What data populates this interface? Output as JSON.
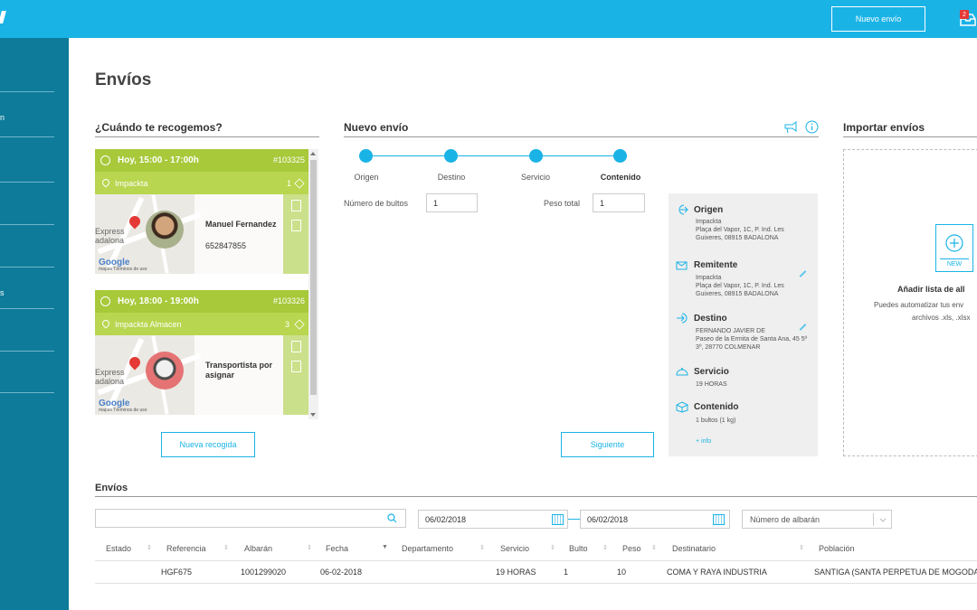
{
  "header": {
    "new_shipment_label": "Nuevo envío",
    "notification_count": "2"
  },
  "sidebar": {
    "items": [
      {
        "label": ""
      },
      {
        "label": "n"
      },
      {
        "label": ""
      },
      {
        "label": ""
      },
      {
        "label": ""
      },
      {
        "label": "s"
      },
      {
        "label": ""
      },
      {
        "label": ""
      }
    ]
  },
  "page_title": "Envíos",
  "pickup": {
    "title": "¿Cuándo te recogemos?",
    "cards": [
      {
        "time": "Hoy, 15:00 - 17:00h",
        "id": "#103325",
        "location": "Impackta",
        "packages": "1",
        "map_city_1": "Express",
        "map_city_2": "adalona",
        "google": "Google",
        "map_footer": "mapas   Términos de uso",
        "driver_name": "Manuel Fernandez",
        "driver_phone": "652847855"
      },
      {
        "time": "Hoy, 18:00 - 19:00h",
        "id": "#103326",
        "location": "Impackta Almacen",
        "packages": "3",
        "map_city_1": "Express",
        "map_city_2": "adalona",
        "google": "Google",
        "map_footer": "mapas   Términos de uso",
        "driver_name": "Transportista por asignar",
        "driver_phone": ""
      }
    ],
    "new_pickup_label": "Nueva recogida"
  },
  "new_shipment": {
    "title": "Nuevo envío",
    "steps": [
      "Origen",
      "Destino",
      "Servicio",
      "Contenido"
    ],
    "active_step": 3,
    "bultos_label": "Número de bultos",
    "bultos_value": "1",
    "peso_label": "Peso total",
    "peso_value": "1",
    "next_label": "Siguiente"
  },
  "summary": {
    "origen_title": "Origen",
    "origen_text": "Impackta\nPlaça del Vapor, 1C, P. Ind. Les Guixeres, 08915 BADALONA",
    "remitente_title": "Remitente",
    "remitente_text": "Impackta\nPlaça del Vapor, 1C, P. Ind. Les Guixeres, 08915 BADALONA",
    "destino_title": "Destino",
    "destino_text": "FERNANDO JAVIER DE\nPaseo de la Ermita de Santa Ana, 45 5º 3º, 28770 COLMENAR",
    "servicio_title": "Servicio",
    "servicio_text": "19 HORAS",
    "contenido_title": "Contenido",
    "contenido_text": "1 bultos (1 kg)",
    "more_info": "+ info"
  },
  "import": {
    "title": "Importar envíos",
    "file_badge": "NEW",
    "add_list": "Añadir lista de all",
    "desc_1": "Puedes automatizar tus env",
    "desc_2": "archivos .xls, .xlsx"
  },
  "shipments": {
    "title": "Envíos",
    "search_placeholder": "",
    "date_from": "06/02/2018",
    "date_to": "06/02/2018",
    "albaran_placeholder": "Número de albarán",
    "columns": [
      "Estado",
      "Referencia",
      "Albarán",
      "Fecha",
      "Departamento",
      "Servicio",
      "Bulto",
      "Peso",
      "Destinatario",
      "Población"
    ],
    "rows": [
      [
        "",
        "HGF675",
        "1001299020",
        "06-02-2018",
        "",
        "19 HORAS",
        "1",
        "10",
        "COMA Y RAYA INDUSTRIA",
        "SANTIGA (SANTA PERPETUA DE MOGODA)"
      ]
    ]
  },
  "colors": {
    "accent": "#1ab3e6",
    "sidebar": "#0e7b9a",
    "card_green": "#a7c93a"
  }
}
